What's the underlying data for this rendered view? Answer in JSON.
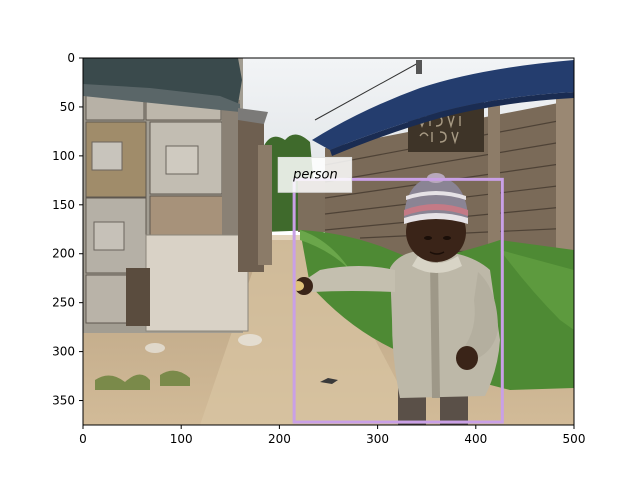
{
  "figure": {
    "x_ticks": [
      "0",
      "100",
      "200",
      "300",
      "400",
      "500"
    ],
    "y_ticks": [
      "0",
      "50",
      "100",
      "150",
      "200",
      "250",
      "300",
      "350"
    ],
    "xlim": [
      0,
      500
    ],
    "ylim": [
      0,
      375
    ],
    "y_inverted": true,
    "grid": false
  },
  "detection": {
    "label": "person",
    "box_color": "#c9a0e6",
    "box": {
      "x_min": 215,
      "y_min": 124,
      "x_max": 427,
      "y_max": 372
    }
  },
  "scene": {
    "colors": {
      "sky": "#e8ecf0",
      "tarp": "#243d6e",
      "tarp_left": "#3a4a4c",
      "wood_dark": "#6b5a48",
      "wood_light": "#9c8b76",
      "metal": "#b8b2a8",
      "ground": "#c9b08e",
      "grass": "#4e8a34",
      "jacket": "#bdb8a8",
      "skin": "#3a2418",
      "hat": "#8a8494"
    }
  }
}
